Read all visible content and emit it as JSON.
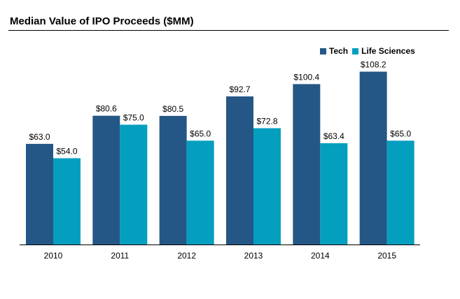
{
  "chart_data": {
    "type": "bar",
    "title": "Median Value of IPO Proceeds ($MM)",
    "xlabel": "",
    "ylabel": "",
    "ylim": [
      0,
      115
    ],
    "grid": false,
    "legend_position": "top-right",
    "categories": [
      "2010",
      "2011",
      "2012",
      "2013",
      "2014",
      "2015"
    ],
    "series": [
      {
        "name": "Tech",
        "color": "#245786",
        "values": [
          63.0,
          80.6,
          80.5,
          92.7,
          100.4,
          108.2
        ],
        "labels": [
          "$63.0",
          "$80.6",
          "$80.5",
          "$92.7",
          "$100.4",
          "$108.2"
        ]
      },
      {
        "name": "Life Sciences",
        "color": "#049fbf",
        "values": [
          54.0,
          75.0,
          65.0,
          72.8,
          63.4,
          65.0
        ],
        "labels": [
          "$54.0",
          "$75.0",
          "$65.0",
          "$72.8",
          "$63.4",
          "$65.0"
        ]
      }
    ]
  }
}
